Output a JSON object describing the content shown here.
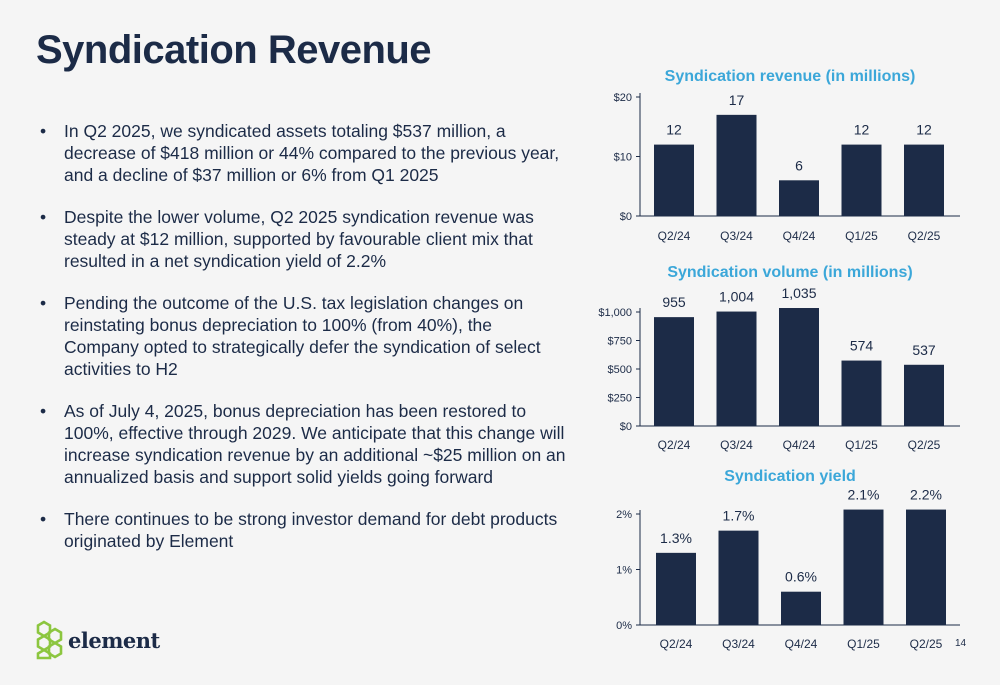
{
  "page": {
    "title": "Syndication Revenue",
    "page_number": "14",
    "logo_text": "element"
  },
  "bullets": [
    "In Q2 2025, we syndicated assets totaling $537 million, a decrease of $418 million or 44% compared to the previous year, and a decline of $37 million or 6% from Q1 2025",
    "Despite the lower volume, Q2 2025 syndication revenue was steady at $12 million, supported by favourable client mix that resulted in a net syndication yield of 2.2%",
    "Pending the outcome of the U.S. tax legislation changes on reinstating bonus depreciation to 100% (from 40%), the Company opted to strategically defer the syndication of select activities to H2",
    "As of July 4, 2025, bonus depreciation has been restored to 100%, effective through 2029. We anticipate that this change will increase syndication revenue by an additional ~$25 million on an annualized basis and support solid yields going forward",
    "There continues to be strong investor demand for debt products originated by Element"
  ],
  "colors": {
    "bar": "#1c2b47",
    "chart_title": "#3ba7d9",
    "text": "#1c2b47",
    "logo_green": "#8cc63f"
  },
  "chart_data": [
    {
      "type": "bar",
      "title": "Syndication revenue (in millions)",
      "categories": [
        "Q2/24",
        "Q3/24",
        "Q4/24",
        "Q1/25",
        "Q2/25"
      ],
      "values": [
        12,
        17,
        6,
        12,
        12
      ],
      "data_labels": [
        "12",
        "17",
        "6",
        "12",
        "12"
      ],
      "ylim": [
        0,
        20
      ],
      "yticks": [
        0,
        10,
        20
      ],
      "ytick_labels": [
        "$0",
        "$10",
        "$20"
      ],
      "grid": false,
      "legend": "none"
    },
    {
      "type": "bar",
      "title": "Syndication volume (in millions)",
      "categories": [
        "Q2/24",
        "Q3/24",
        "Q4/24",
        "Q1/25",
        "Q2/25"
      ],
      "values": [
        955,
        1004,
        1035,
        574,
        537
      ],
      "data_labels": [
        "955",
        "1,004",
        "1,035",
        "574",
        "537"
      ],
      "ylim": [
        0,
        1000
      ],
      "yticks": [
        0,
        250,
        500,
        750,
        1000
      ],
      "ytick_labels": [
        "$0",
        "$250",
        "$500",
        "$750",
        "$1,000"
      ],
      "grid": false,
      "legend": "none"
    },
    {
      "type": "bar",
      "title": "Syndication yield",
      "categories": [
        "Q2/24",
        "Q3/24",
        "Q4/24",
        "Q1/25",
        "Q2/25"
      ],
      "values": [
        1.3,
        1.7,
        0.6,
        2.1,
        2.2
      ],
      "data_labels": [
        "1.3%",
        "1.7%",
        "0.6%",
        "2.1%",
        "2.2%"
      ],
      "ylim": [
        0,
        2
      ],
      "yticks": [
        0,
        1,
        2
      ],
      "ytick_labels": [
        "0%",
        "1%",
        "2%"
      ],
      "grid": false,
      "legend": "none"
    }
  ]
}
